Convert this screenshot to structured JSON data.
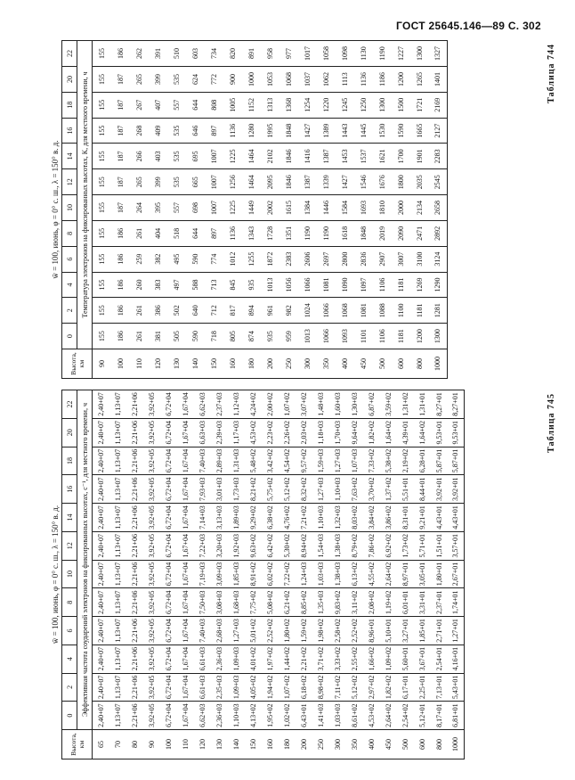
{
  "header": {
    "text": "ГОСТ 25645.146—89 С. 302"
  },
  "tables": [
    {
      "label": "Таблица 744",
      "caption": "w̄ = 100, июнь, φ = 0° с. ш., λ = 150° в. д.",
      "height_header": "Высота, км",
      "subheader": "Температура электронов на фиксированных высотах, К, для местного времени, ч",
      "times": [
        0,
        2,
        4,
        6,
        8,
        10,
        12,
        14,
        16,
        18,
        20,
        22
      ],
      "rows": [
        [
          90,
          155,
          155,
          155,
          155,
          155,
          155,
          155,
          155,
          155,
          155,
          155,
          155
        ],
        [
          100,
          186,
          186,
          186,
          186,
          186,
          187,
          187,
          187,
          187,
          187,
          187,
          186
        ],
        [
          110,
          261,
          261,
          260,
          259,
          261,
          264,
          265,
          266,
          268,
          267,
          265,
          262
        ],
        [
          120,
          381,
          386,
          383,
          382,
          404,
          395,
          399,
          403,
          409,
          407,
          399,
          391
        ],
        [
          130,
          505,
          502,
          497,
          495,
          518,
          557,
          535,
          535,
          535,
          557,
          535,
          510
        ],
        [
          140,
          590,
          640,
          588,
          590,
          644,
          698,
          665,
          695,
          646,
          644,
          624,
          603
        ],
        [
          150,
          718,
          712,
          713,
          774,
          897,
          1007,
          1007,
          1007,
          897,
          808,
          772,
          734
        ],
        [
          160,
          805,
          817,
          845,
          1012,
          1136,
          1225,
          1256,
          1225,
          1136,
          1005,
          900,
          820
        ],
        [
          180,
          874,
          894,
          935,
          1255,
          1343,
          1449,
          1464,
          1464,
          1280,
          1152,
          1000,
          891
        ],
        [
          200,
          935,
          961,
          1013,
          1872,
          1728,
          2002,
          2095,
          2102,
          1995,
          1313,
          1053,
          958
        ],
        [
          250,
          959,
          982,
          1056,
          2383,
          1351,
          1615,
          1846,
          1846,
          1848,
          1368,
          1068,
          977
        ],
        [
          300,
          1013,
          1024,
          1066,
          2606,
          1190,
          1384,
          1387,
          1416,
          1427,
          1254,
          1037,
          1017
        ],
        [
          350,
          1066,
          1066,
          1081,
          2697,
          1190,
          1446,
          1339,
          1387,
          1389,
          1220,
          1062,
          1058
        ],
        [
          400,
          1093,
          1068,
          1090,
          2800,
          1618,
          1584,
          1427,
          1453,
          1443,
          1245,
          1113,
          1098
        ],
        [
          450,
          1101,
          1081,
          1097,
          2836,
          1848,
          1693,
          1546,
          1537,
          1445,
          1250,
          1136,
          1130
        ],
        [
          500,
          1106,
          1088,
          1106,
          2907,
          2019,
          1810,
          1676,
          1621,
          1530,
          1300,
          1186,
          1190
        ],
        [
          600,
          1181,
          1100,
          1181,
          3007,
          2090,
          2000,
          1800,
          1700,
          1590,
          1500,
          1200,
          1227
        ],
        [
          800,
          1200,
          1181,
          1269,
          3100,
          2471,
          2134,
          2035,
          1901,
          1665,
          1721,
          1265,
          1300
        ],
        [
          1000,
          1300,
          1281,
          1290,
          3124,
          2892,
          2658,
          2545,
          2283,
          2127,
          2169,
          1401,
          1327
        ]
      ]
    },
    {
      "label": "Таблица 745",
      "caption": "w̄ = 100, июнь, φ = 0° с. ш., λ = 150° в. д.",
      "height_header": "Высота, км",
      "subheader": "Эффективная частота соударений электронов на фиксированных высотах, с⁻¹, для местного времени, ч",
      "times": [
        0,
        2,
        4,
        6,
        8,
        10,
        12,
        14,
        16,
        18,
        20,
        22
      ],
      "rows": [
        [
          65,
          "2,40+07",
          "2,40+07",
          "2,40+07",
          "2,40+07",
          "2,40+07",
          "2,40+07",
          "2,40+07",
          "2,40+07",
          "2,40+07",
          "2,40+07",
          "2,40+07",
          "2,40+07"
        ],
        [
          70,
          "1,13+07",
          "1,13+07",
          "1,13+07",
          "1,13+07",
          "1,13+07",
          "1,13+07",
          "1,13+07",
          "1,13+07",
          "1,13+07",
          "1,13+07",
          "1,13+07",
          "1,13+07"
        ],
        [
          80,
          "2,21+06",
          "2,21+06",
          "2,21+06",
          "2,21+06",
          "2,21+06",
          "2,21+06",
          "2,21+06",
          "2,21+06",
          "2,21+06",
          "2,21+06",
          "2,21+06",
          "2,21+06"
        ],
        [
          90,
          "3,92+05",
          "3,92+05",
          "3,92+05",
          "3,92+05",
          "3,92+05",
          "3,92+05",
          "3,92+05",
          "3,92+05",
          "3,92+05",
          "3,92+05",
          "3,92+05",
          "3,92+05"
        ],
        [
          100,
          "6,72+04",
          "6,72+04",
          "6,72+04",
          "6,72+04",
          "6,72+04",
          "6,72+04",
          "6,72+04",
          "6,72+04",
          "6,72+04",
          "6,72+04",
          "6,72+04",
          "6,72+04"
        ],
        [
          110,
          "1,67+04",
          "1,67+04",
          "1,67+04",
          "1,67+04",
          "1,67+04",
          "1,67+04",
          "1,67+04",
          "1,67+04",
          "1,67+04",
          "1,67+04",
          "1,67+04",
          "1,67+04"
        ],
        [
          120,
          "6,62+03",
          "6,61+03",
          "6,61+03",
          "7,40+03",
          "7,50+03",
          "7,19+03",
          "7,22+03",
          "7,14+03",
          "7,93+03",
          "7,40+03",
          "6,63+03",
          "6,62+03"
        ],
        [
          130,
          "2,36+03",
          "2,35+03",
          "2,36+03",
          "2,68+03",
          "3,08+03",
          "3,09+03",
          "3,20+03",
          "3,13+03",
          "3,01+03",
          "2,89+03",
          "2,39+03",
          "2,37+03"
        ],
        [
          140,
          "1,10+03",
          "1,09+03",
          "1,09+03",
          "1,27+03",
          "1,68+03",
          "1,85+03",
          "1,92+03",
          "1,89+03",
          "1,73+03",
          "1,31+03",
          "1,17+03",
          "1,12+03"
        ],
        [
          150,
          "4,13+02",
          "4,05+02",
          "4,01+02",
          "5,01+02",
          "7,75+02",
          "8,91+02",
          "9,63+02",
          "9,29+02",
          "8,21+02",
          "5,48+02",
          "4,53+02",
          "4,24+02"
        ],
        [
          160,
          "1,95+02",
          "1,94+02",
          "1,97+02",
          "2,52+02",
          "5,08+02",
          "6,02+02",
          "6,42+02",
          "6,38+02",
          "5,75+02",
          "3,42+02",
          "2,23+02",
          "2,00+02"
        ],
        [
          180,
          "1,02+02",
          "1,07+02",
          "1,44+02",
          "1,80+02",
          "6,21+02",
          "7,22+02",
          "5,30+02",
          "4,76+02",
          "5,12+02",
          "4,54+02",
          "2,26+02",
          "1,07+02"
        ],
        [
          200,
          "6,43+01",
          "6,18+02",
          "2,21+02",
          "1,59+02",
          "8,85+02",
          "1,24+03",
          "8,94+02",
          "7,21+02",
          "8,32+02",
          "9,57+02",
          "2,03+02",
          "3,07+02"
        ],
        [
          250,
          "1,41+03",
          "8,98+02",
          "3,71+02",
          "1,98+02",
          "1,35+03",
          "1,03+03",
          "1,54+03",
          "1,10+03",
          "1,27+03",
          "1,59+03",
          "1,18+03",
          "1,48+03"
        ],
        [
          300,
          "1,03+03",
          "7,11+02",
          "3,33+02",
          "2,58+02",
          "9,83+02",
          "1,38+03",
          "1,38+03",
          "1,32+03",
          "1,10+03",
          "1,27+03",
          "1,70+03",
          "1,60+03"
        ],
        [
          350,
          "8,61+02",
          "5,12+02",
          "2,55+02",
          "2,52+02",
          "3,11+02",
          "6,13+02",
          "8,79+02",
          "8,03+02",
          "7,63+02",
          "1,07+03",
          "9,64+02",
          "1,30+03"
        ],
        [
          400,
          "4,53+02",
          "2,97+02",
          "1,66+02",
          "8,96+01",
          "2,08+02",
          "4,55+02",
          "7,86+02",
          "3,84+02",
          "3,70+02",
          "7,33+02",
          "1,82+02",
          "6,87+02"
        ],
        [
          450,
          "2,64+02",
          "1,82+02",
          "1,09+02",
          "5,10+01",
          "1,19+02",
          "2,64+02",
          "6,92+02",
          "3,86+02",
          "1,37+02",
          "5,38+02",
          "1,64+02",
          "3,59+02"
        ],
        [
          500,
          "2,54+02",
          "6,17+01",
          "5,60+01",
          "3,27+01",
          "6,01+01",
          "8,97+01",
          "1,73+02",
          "8,31+01",
          "5,51+01",
          "2,19+02",
          "4,39+01",
          "1,31+02"
        ],
        [
          600,
          "5,12+01",
          "2,25+01",
          "3,67+01",
          "1,85+01",
          "3,31+01",
          "3,05+01",
          "5,71+01",
          "9,21+01",
          "8,44+01",
          "6,28+01",
          "1,64+02",
          "1,31+01"
        ],
        [
          800,
          "8,17+01",
          "7,13+01",
          "2,54+01",
          "2,71+01",
          "2,37+01",
          "1,80+01",
          "1,51+01",
          "4,43+01",
          "3,92+01",
          "5,87+01",
          "9,53+01",
          "8,27+01"
        ],
        [
          1000,
          "6,81+01",
          "5,43+01",
          "4,16+01",
          "1,27+01",
          "1,74+01",
          "2,67+01",
          "3,57+01",
          "4,43+01",
          "3,92+01",
          "5,87+01",
          "9,53+01",
          "8,27+01"
        ]
      ]
    }
  ]
}
